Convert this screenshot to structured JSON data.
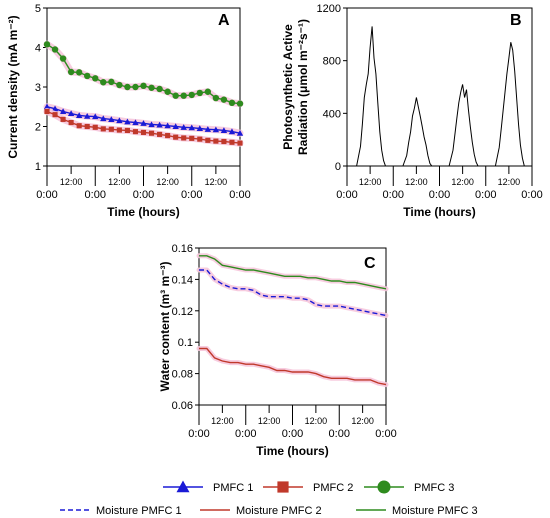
{
  "colors": {
    "pmfc1": "#1a1ad6",
    "pmfc2": "#c0392b",
    "pmfc3": "#2e8b1e",
    "band": "#f6c6dc",
    "par": "#000000"
  },
  "chart_data": [
    {
      "panel": "A",
      "type": "line",
      "ylabel": "Current density (mA m⁻²)",
      "xlabel": "Time (hours)",
      "ylim": [
        1,
        5
      ],
      "yticks": [
        "1",
        "2",
        "3",
        "4",
        "5"
      ],
      "x": [
        0,
        3,
        6,
        9,
        12,
        15,
        18,
        21,
        24,
        27,
        30,
        33,
        36,
        39,
        42,
        45,
        48,
        51,
        54,
        57,
        60,
        63,
        66,
        69,
        72
      ],
      "xticks_major": [
        "0:00",
        "0:00",
        "0:00",
        "0:00",
        "0:00"
      ],
      "xticks_minor": [
        "12:00",
        "12:00",
        "12:00",
        "12:00"
      ],
      "series": [
        {
          "name": "PMFC 1",
          "marker": "triangle",
          "values": [
            2.5,
            2.45,
            2.38,
            2.33,
            2.28,
            2.26,
            2.25,
            2.2,
            2.18,
            2.15,
            2.12,
            2.1,
            2.08,
            2.05,
            2.04,
            2.02,
            2.0,
            1.98,
            1.97,
            1.95,
            1.93,
            1.92,
            1.9,
            1.87,
            1.83
          ]
        },
        {
          "name": "PMFC 2",
          "marker": "square",
          "values": [
            2.38,
            2.3,
            2.18,
            2.1,
            2.02,
            2.0,
            1.98,
            1.94,
            1.93,
            1.91,
            1.9,
            1.87,
            1.85,
            1.83,
            1.8,
            1.77,
            1.73,
            1.71,
            1.7,
            1.68,
            1.65,
            1.63,
            1.62,
            1.6,
            1.58
          ]
        },
        {
          "name": "PMFC 3",
          "marker": "circle",
          "values": [
            4.08,
            3.95,
            3.72,
            3.38,
            3.37,
            3.28,
            3.22,
            3.12,
            3.13,
            3.05,
            3.0,
            3.0,
            3.03,
            2.98,
            2.95,
            2.88,
            2.78,
            2.78,
            2.8,
            2.85,
            2.88,
            2.72,
            2.68,
            2.6,
            2.58
          ]
        }
      ]
    },
    {
      "panel": "B",
      "type": "line",
      "ylabel": "Photosynthetic Active Radiation (μmol m⁻²s⁻¹)",
      "xlabel": "Time (hours)",
      "ylim": [
        0,
        1200
      ],
      "yticks": [
        "0",
        "400",
        "800",
        "1200"
      ],
      "xticks_major": [
        "0:00",
        "0:00",
        "0:00",
        "0:00",
        "0:00"
      ],
      "xticks_minor": [
        "12:00",
        "12:00",
        "12:00",
        "12:00"
      ],
      "series": [
        {
          "name": "PAR",
          "x": [
            0,
            5,
            7,
            8,
            9,
            10,
            11,
            12,
            13,
            14,
            15,
            16,
            17,
            18,
            19,
            20,
            29,
            31,
            32,
            33,
            34,
            35,
            36,
            37,
            38,
            39,
            40,
            41,
            42,
            43,
            44,
            53,
            55,
            56,
            57,
            58,
            59,
            60,
            61,
            62,
            63,
            64,
            65,
            66,
            67,
            68,
            77,
            79,
            80,
            81,
            82,
            83,
            84,
            85,
            86,
            87,
            88,
            89,
            90,
            91,
            92,
            96
          ],
          "values": [
            0,
            0,
            150,
            320,
            520,
            620,
            700,
            900,
            1060,
            820,
            700,
            480,
            260,
            120,
            40,
            0,
            0,
            80,
            180,
            260,
            380,
            440,
            520,
            450,
            380,
            300,
            220,
            160,
            80,
            20,
            0,
            0,
            120,
            240,
            360,
            480,
            560,
            620,
            520,
            580,
            430,
            300,
            180,
            90,
            30,
            0,
            0,
            140,
            280,
            420,
            560,
            700,
            820,
            940,
            880,
            720,
            520,
            320,
            160,
            60,
            0,
            0
          ]
        }
      ]
    },
    {
      "panel": "C",
      "type": "line",
      "ylabel": "Water content (m³ m⁻³)",
      "xlabel": "Time (hours)",
      "ylim": [
        0.06,
        0.16
      ],
      "yticks": [
        "0.06",
        "0.08",
        "0.1",
        "0.12",
        "0.14",
        "0.16"
      ],
      "x": [
        0,
        3,
        6,
        9,
        12,
        15,
        18,
        21,
        24,
        27,
        30,
        33,
        36,
        39,
        42,
        45,
        48,
        51,
        54,
        57,
        60,
        63,
        66,
        69,
        72
      ],
      "xticks_major": [
        "0:00",
        "0:00",
        "0:00",
        "0:00",
        "0:00"
      ],
      "xticks_minor": [
        "12:00",
        "12:00",
        "12:00",
        "12:00"
      ],
      "series": [
        {
          "name": "Moisture PMFC 1",
          "style": "dashed",
          "values": [
            0.146,
            0.146,
            0.14,
            0.137,
            0.135,
            0.134,
            0.134,
            0.133,
            0.13,
            0.129,
            0.129,
            0.129,
            0.128,
            0.128,
            0.127,
            0.124,
            0.123,
            0.123,
            0.123,
            0.122,
            0.121,
            0.12,
            0.119,
            0.118,
            0.117
          ]
        },
        {
          "name": "Moisture PMFC 2",
          "style": "solid",
          "values": [
            0.096,
            0.096,
            0.09,
            0.088,
            0.087,
            0.087,
            0.086,
            0.086,
            0.085,
            0.084,
            0.082,
            0.082,
            0.081,
            0.081,
            0.081,
            0.08,
            0.078,
            0.077,
            0.077,
            0.077,
            0.076,
            0.076,
            0.076,
            0.074,
            0.073
          ]
        },
        {
          "name": "Moisture PMFC 3",
          "style": "solid",
          "values": [
            0.155,
            0.155,
            0.153,
            0.149,
            0.148,
            0.147,
            0.146,
            0.146,
            0.145,
            0.144,
            0.143,
            0.142,
            0.142,
            0.142,
            0.141,
            0.141,
            0.14,
            0.139,
            0.139,
            0.138,
            0.138,
            0.137,
            0.136,
            0.135,
            0.134
          ]
        }
      ]
    }
  ],
  "legend": {
    "row1": [
      {
        "label": "PMFC 1",
        "marker": "triangle",
        "color_key": "pmfc1"
      },
      {
        "label": "PMFC 2",
        "marker": "square",
        "color_key": "pmfc2"
      },
      {
        "label": "PMFC 3",
        "marker": "circle",
        "color_key": "pmfc3"
      }
    ],
    "row2": [
      {
        "label": "Moisture PMFC 1",
        "style": "dashed",
        "color_key": "pmfc1"
      },
      {
        "label": "Moisture PMFC 2",
        "style": "solid",
        "color_key": "pmfc2"
      },
      {
        "label": "Moisture PMFC 3",
        "style": "solid",
        "color_key": "pmfc3"
      }
    ]
  }
}
